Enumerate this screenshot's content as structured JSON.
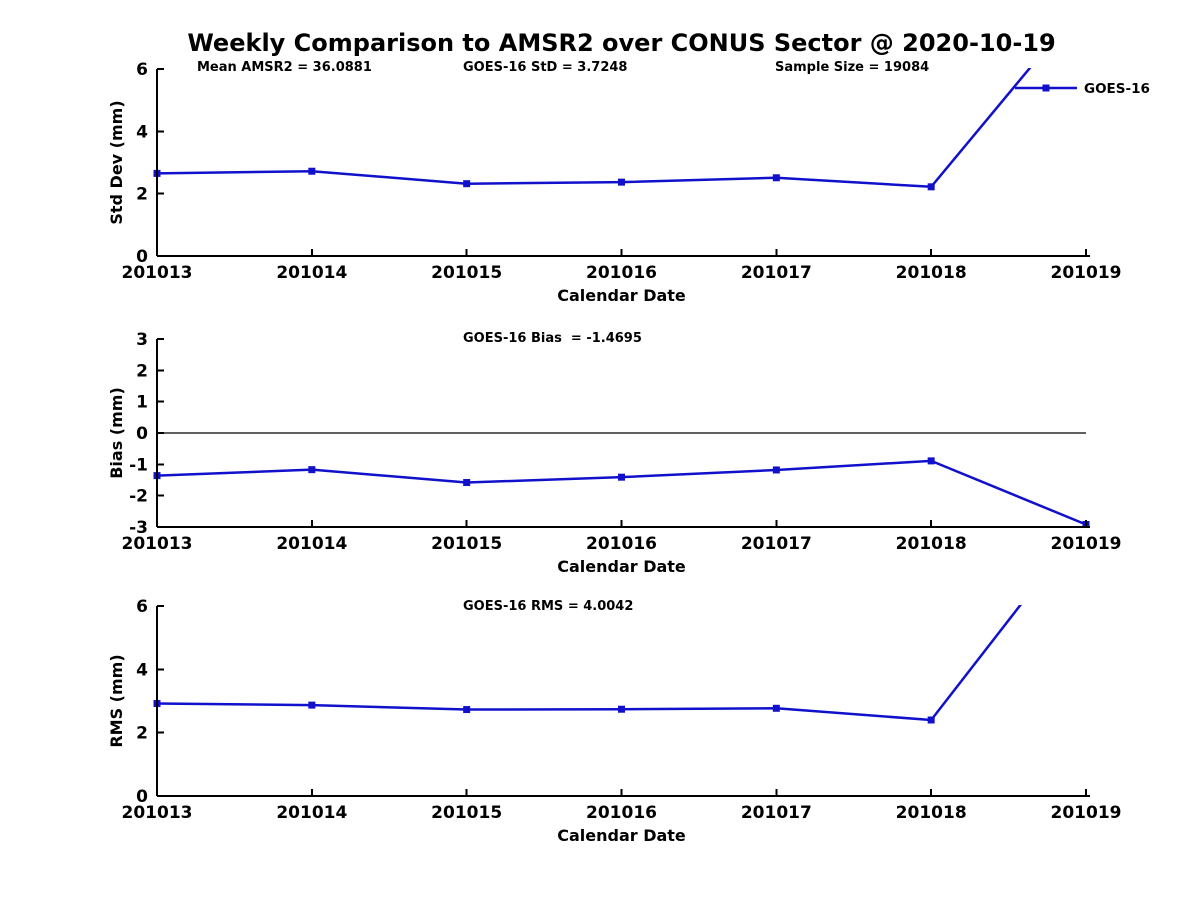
{
  "title": "Weekly Comparison to AMSR2 over CONUS Sector @ 2020-10-19",
  "colors": {
    "background": "#ffffff",
    "line": "#1111cc",
    "axis": "#000000",
    "text": "#000000"
  },
  "chart_data": [
    {
      "type": "line",
      "name": "std-dev",
      "title": "",
      "xlabel": "Calendar Date",
      "ylabel": "Std Dev (mm)",
      "categories": [
        "201013",
        "201014",
        "201015",
        "201016",
        "201017",
        "201018",
        "201019"
      ],
      "series": [
        {
          "name": "GOES-16",
          "values": [
            2.65,
            2.72,
            2.32,
            2.37,
            2.51,
            2.22,
            8.2
          ]
        }
      ],
      "ylim": [
        0,
        6
      ],
      "yticks": [
        0,
        2,
        4,
        6
      ],
      "grid": false,
      "marker": "square",
      "annotations": [
        "Mean AMSR2 = 36.0881",
        "GOES-16 StD = 3.7248",
        "Sample Size = 19084"
      ],
      "legend": {
        "label": "GOES-16",
        "position": "inside-top-right"
      }
    },
    {
      "type": "line",
      "name": "bias",
      "title": "",
      "xlabel": "Calendar Date",
      "ylabel": "Bias (mm)",
      "categories": [
        "201013",
        "201014",
        "201015",
        "201016",
        "201017",
        "201018",
        "201019"
      ],
      "series": [
        {
          "name": "GOES-16",
          "values": [
            -1.36,
            -1.17,
            -1.58,
            -1.41,
            -1.18,
            -0.89,
            -2.92
          ]
        }
      ],
      "ylim": [
        -3,
        3
      ],
      "yticks": [
        -3,
        -2,
        -1,
        0,
        1,
        2,
        3
      ],
      "grid": false,
      "marker": "square",
      "zero_line": true,
      "annotations": [
        "GOES-16 Bias  = -1.4695"
      ]
    },
    {
      "type": "line",
      "name": "rms",
      "title": "",
      "xlabel": "Calendar Date",
      "ylabel": "RMS (mm)",
      "categories": [
        "201013",
        "201014",
        "201015",
        "201016",
        "201017",
        "201018",
        "201019"
      ],
      "series": [
        {
          "name": "GOES-16",
          "values": [
            2.92,
            2.87,
            2.73,
            2.74,
            2.77,
            2.4,
            8.7
          ]
        }
      ],
      "ylim": [
        0,
        6
      ],
      "yticks": [
        0,
        2,
        4,
        6
      ],
      "grid": false,
      "marker": "square",
      "annotations": [
        "GOES-16 RMS = 4.0042"
      ]
    }
  ]
}
